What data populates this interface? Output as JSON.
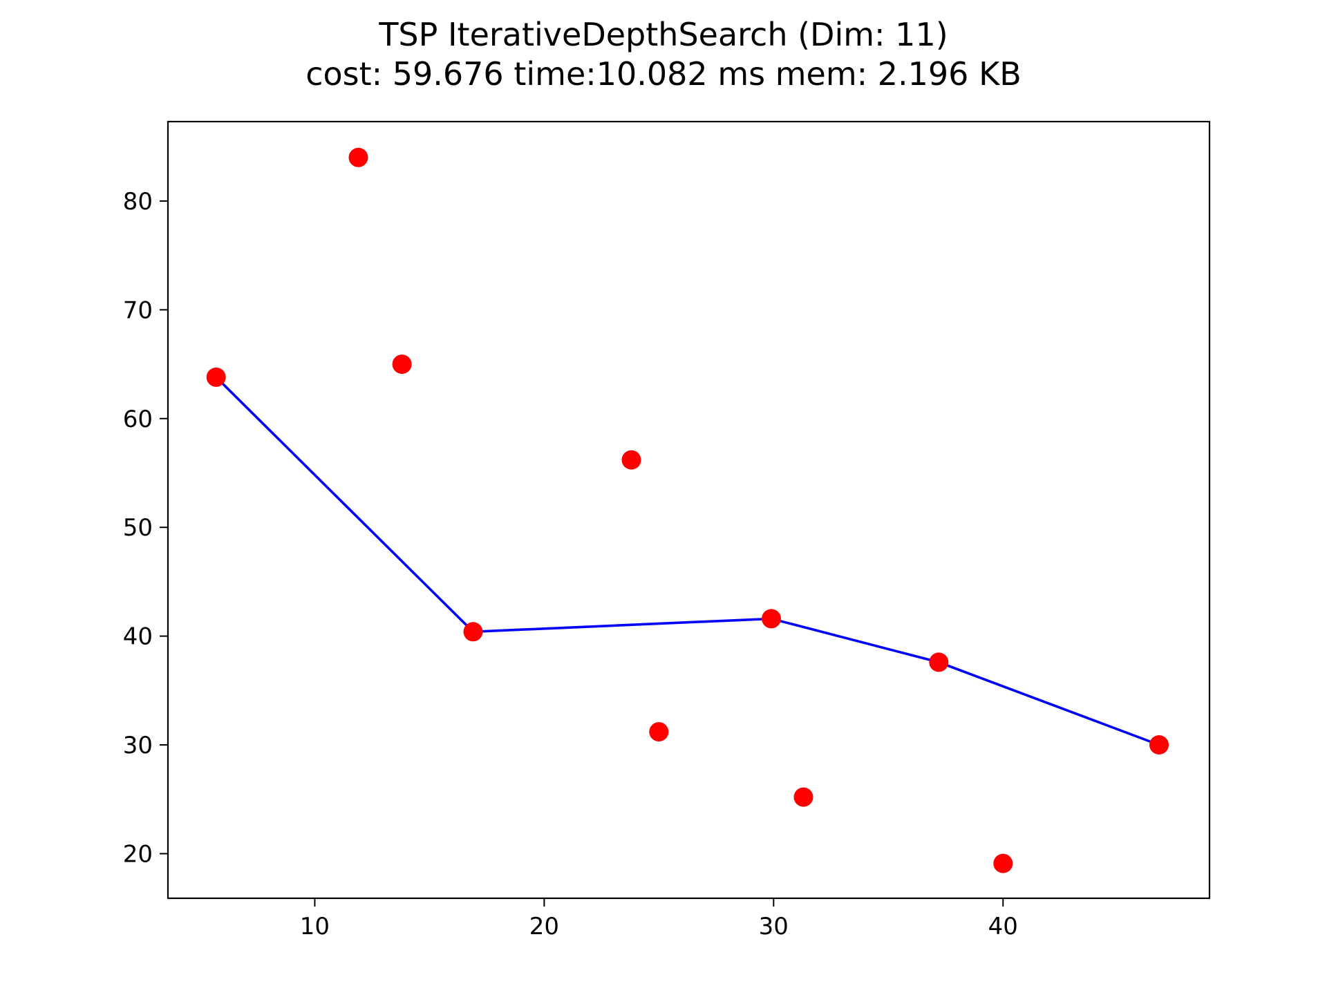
{
  "chart_data": {
    "type": "scatter",
    "title": "TSP IterativeDepthSearch (Dim: 11)",
    "subtitle": "cost: 59.676   time:10.082 ms   mem: 2.196 KB",
    "xlabel": "",
    "ylabel": "",
    "xlim": [
      3.6,
      49
    ],
    "ylim": [
      15.9,
      87.3
    ],
    "grid": false,
    "x_ticks": [
      10,
      20,
      30,
      40
    ],
    "y_ticks": [
      20,
      30,
      40,
      50,
      60,
      70,
      80
    ],
    "x_tick_labels": [
      "10",
      "20",
      "30",
      "40"
    ],
    "y_tick_labels": [
      "20",
      "30",
      "40",
      "50",
      "60",
      "70",
      "80"
    ],
    "colors": {
      "points": "#ff0000",
      "path": "#0000ff",
      "axes": "#000000"
    },
    "points": [
      {
        "x": 5.7,
        "y": 63.8
      },
      {
        "x": 11.9,
        "y": 84.0
      },
      {
        "x": 13.8,
        "y": 65.0
      },
      {
        "x": 16.9,
        "y": 40.4
      },
      {
        "x": 23.8,
        "y": 56.2
      },
      {
        "x": 25.0,
        "y": 31.2
      },
      {
        "x": 29.9,
        "y": 41.6
      },
      {
        "x": 31.3,
        "y": 25.2
      },
      {
        "x": 37.2,
        "y": 37.6
      },
      {
        "x": 40.0,
        "y": 19.1
      },
      {
        "x": 46.8,
        "y": 30.0
      }
    ],
    "path": [
      {
        "x": 5.7,
        "y": 63.8
      },
      {
        "x": 16.9,
        "y": 40.4
      },
      {
        "x": 29.9,
        "y": 41.6
      },
      {
        "x": 37.2,
        "y": 37.6
      },
      {
        "x": 46.8,
        "y": 30.0
      }
    ]
  }
}
